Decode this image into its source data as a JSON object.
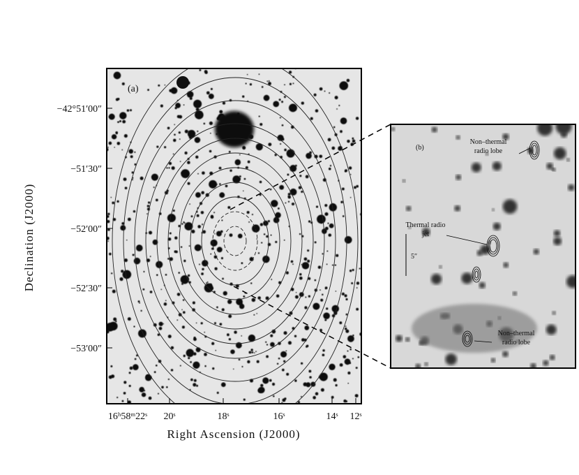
{
  "panel_a": {
    "label": "(a)",
    "x_axis_label": "Right Ascension (J2000)",
    "y_axis_label": "Declination (J2000)",
    "x_ticks": [
      "16ʰ58ᵐ22ˢ",
      "20ˢ",
      "18ˢ",
      "16ˢ",
      "14ˢ",
      "12ˢ"
    ],
    "y_ticks": [
      "−42°51′00″",
      "−51′30″",
      "−52′00″",
      "−52′30″",
      "−53′00″"
    ]
  },
  "panel_b": {
    "label": "(b)",
    "annotations": [
      {
        "lines": [
          "Non–thermal",
          "radio lobe"
        ]
      },
      {
        "lines": [
          "Thermal radio",
          "jet"
        ]
      },
      {
        "lines": [
          "Non–thermal",
          "radio lobe"
        ]
      }
    ],
    "scale_bar": "5″"
  }
}
